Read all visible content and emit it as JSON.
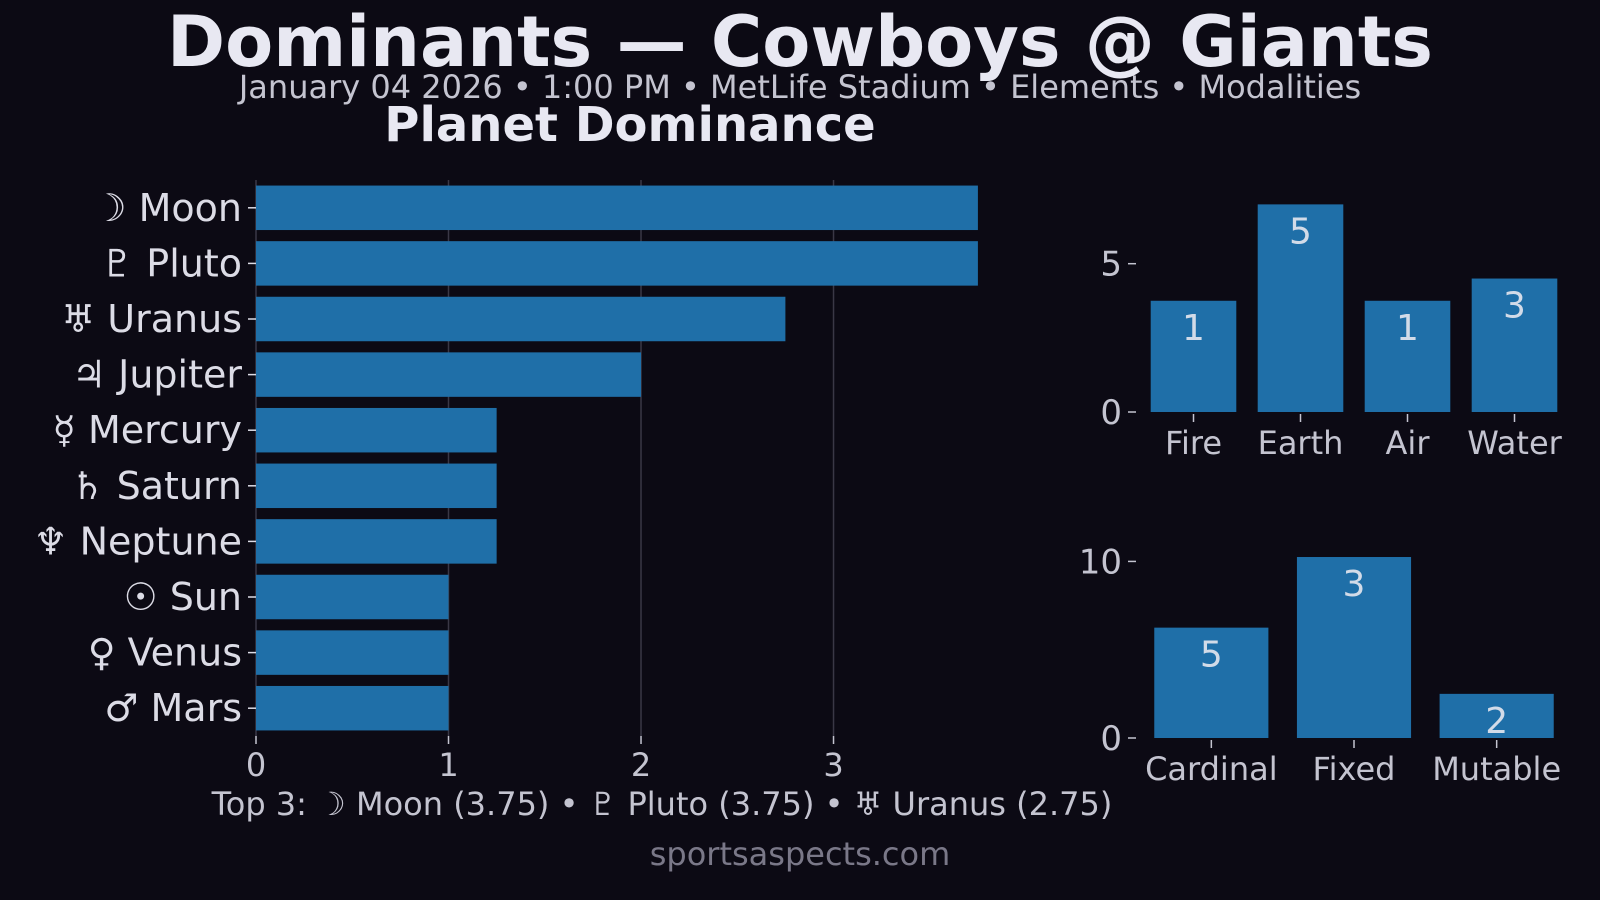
{
  "page": {
    "title": "Dominants — Cowboys @ Giants",
    "subtitle": "January 04 2026 • 1:00 PM • MetLife Stadium • Elements • Modalities",
    "top3": "Top 3: ☽ Moon (3.75) • ♇ Pluto (3.75) • ♅ Uranus (2.75)",
    "footer": "sportsaspects.com"
  },
  "colors": {
    "background": "#0c0a14",
    "bar": "#1f6fa8",
    "title_text": "#e8e8f2",
    "label_text": "#dcdce6",
    "tick_text": "#c4c4d0",
    "bar_label_text": "#d2dbe8",
    "footer_text": "#7a7888",
    "grid": "#3a3846"
  },
  "chart_data": [
    {
      "type": "bar",
      "orientation": "horizontal",
      "title": "Planet Dominance",
      "categories": [
        "☽ Moon",
        "♇ Pluto",
        "♅ Uranus",
        "♃ Jupiter",
        "☿ Mercury",
        "♄ Saturn",
        "♆ Neptune",
        "☉ Sun",
        "♀ Venus",
        "♂ Mars"
      ],
      "values": [
        3.75,
        3.75,
        2.75,
        2.0,
        1.25,
        1.25,
        1.25,
        1.0,
        1.0,
        1.0
      ],
      "xticks": [
        0,
        1,
        2,
        3
      ],
      "xlim": [
        0,
        3.9375
      ],
      "grid": "x"
    },
    {
      "type": "bar",
      "categories": [
        "Fire",
        "Earth",
        "Air",
        "Water"
      ],
      "values": [
        3.75,
        7.0,
        3.75,
        4.5
      ],
      "data_labels": [
        "1",
        "5",
        "1",
        "3"
      ],
      "yticks": [
        0,
        5
      ],
      "ylim": [
        0,
        7.35
      ]
    },
    {
      "type": "bar",
      "categories": [
        "Cardinal",
        "Fixed",
        "Mutable"
      ],
      "values": [
        6.25,
        10.25,
        2.5
      ],
      "data_labels": [
        "5",
        "3",
        "2"
      ],
      "yticks": [
        0,
        10
      ],
      "ylim": [
        0,
        10.76
      ]
    }
  ]
}
